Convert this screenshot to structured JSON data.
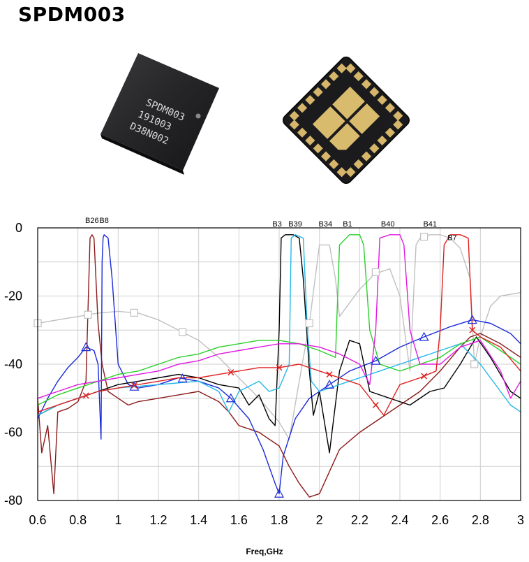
{
  "title": "SPDM003",
  "chip_marking": {
    "line1": "SPDM003",
    "line2": "191003",
    "line3": "D38N002"
  },
  "chart_data": {
    "type": "line",
    "title": "",
    "xlabel": "Freq,GHz",
    "ylabel": "",
    "xlim": [
      0.6,
      3.0
    ],
    "ylim": [
      -80,
      0
    ],
    "xticks": [
      "0.6",
      "0.8",
      "1",
      "1.2",
      "1.4",
      "1.6",
      "1.8",
      "2",
      "2.2",
      "2.4",
      "2.6",
      "2.8",
      "3"
    ],
    "yticks": [
      "0",
      "-20",
      "-40",
      "-60",
      "-80"
    ],
    "grid": true,
    "band_labels": [
      {
        "text": "B26",
        "x": 0.87,
        "y": 1
      },
      {
        "text": "B8",
        "x": 0.93,
        "y": 1
      },
      {
        "text": "B3",
        "x": 1.79,
        "y": 0
      },
      {
        "text": "B39",
        "x": 1.88,
        "y": 0
      },
      {
        "text": "B34",
        "x": 2.03,
        "y": 0
      },
      {
        "text": "B1",
        "x": 2.14,
        "y": 0
      },
      {
        "text": "B40",
        "x": 2.34,
        "y": 0
      },
      {
        "text": "B41",
        "x": 2.55,
        "y": 0
      },
      {
        "text": "B7",
        "x": 2.66,
        "y": -4
      }
    ],
    "series": [
      {
        "color": "#c0c0c0",
        "marker": "square",
        "marker_x": [
          0.6,
          0.85,
          1.08,
          1.32,
          1.95,
          2.28,
          2.52,
          2.77
        ],
        "x": [
          0.6,
          0.7,
          0.8,
          0.9,
          1.0,
          1.1,
          1.2,
          1.3,
          1.4,
          1.5,
          1.6,
          1.7,
          1.8,
          1.85,
          1.9,
          1.95,
          2.0,
          2.05,
          2.08,
          2.1,
          2.15,
          2.2,
          2.25,
          2.28,
          2.3,
          2.35,
          2.4,
          2.45,
          2.48,
          2.5,
          2.55,
          2.6,
          2.65,
          2.7,
          2.75,
          2.77,
          2.8,
          2.85,
          2.9,
          3.0
        ],
        "y": [
          -28,
          -27,
          -26,
          -25,
          -24.5,
          -25,
          -27,
          -30,
          -33,
          -38,
          -44,
          -50,
          -57,
          -62,
          -45,
          -28,
          -5,
          -5,
          -15,
          -26,
          -22,
          -18,
          -15,
          -13,
          -13,
          -12,
          -20,
          -42,
          -5,
          -3,
          -2,
          -2,
          -3,
          -6,
          -15,
          -40,
          -32,
          -23,
          -20,
          -19
        ]
      },
      {
        "color": "#8b1a1a",
        "x": [
          0.6,
          0.62,
          0.65,
          0.68,
          0.7,
          0.75,
          0.8,
          0.84,
          0.86,
          0.87,
          0.88,
          0.9,
          0.92,
          0.95,
          1.0,
          1.05,
          1.1,
          1.2,
          1.3,
          1.4,
          1.5,
          1.55,
          1.6,
          1.7,
          1.8,
          1.85,
          1.9,
          1.95,
          2.0,
          2.1,
          2.2,
          2.3,
          2.4,
          2.5,
          2.6,
          2.7,
          2.75,
          2.8,
          2.9,
          3.0
        ],
        "y": [
          -50,
          -66,
          -58,
          -78,
          -54,
          -53,
          -51,
          -45,
          -3,
          -2,
          -3,
          -28,
          -40,
          -48,
          -50,
          -52,
          -51,
          -50,
          -49,
          -48,
          -51,
          -54,
          -58,
          -60,
          -64,
          -70,
          -75,
          -79,
          -78,
          -65,
          -60,
          -56,
          -52,
          -48,
          -42,
          -35,
          -32,
          -31,
          -34,
          -38
        ]
      },
      {
        "color": "#1a2ad8",
        "marker": "triangle",
        "marker_x": [
          0.84,
          1.08,
          1.32,
          1.56,
          1.8,
          2.05,
          2.28,
          2.52,
          2.76
        ],
        "x": [
          0.6,
          0.65,
          0.7,
          0.75,
          0.8,
          0.84,
          0.88,
          0.9,
          0.915,
          0.92,
          0.925,
          0.93,
          0.95,
          0.97,
          1.0,
          1.05,
          1.1,
          1.2,
          1.3,
          1.4,
          1.5,
          1.56,
          1.65,
          1.72,
          1.78,
          1.8,
          1.82,
          1.88,
          1.95,
          2.05,
          2.15,
          2.28,
          2.4,
          2.52,
          2.65,
          2.76,
          2.85,
          2.95,
          3.0
        ],
        "y": [
          -56,
          -50,
          -45,
          -41,
          -38,
          -35,
          -36,
          -40,
          -62,
          -10,
          -3,
          -2,
          -3,
          -15,
          -40,
          -46,
          -47,
          -46,
          -44,
          -45,
          -47,
          -50,
          -56,
          -65,
          -75,
          -78,
          -67,
          -56,
          -50,
          -46,
          -42,
          -39,
          -35,
          -32,
          -29,
          -27,
          -28,
          -31,
          -34
        ]
      },
      {
        "color": "#000000",
        "x": [
          0.6,
          0.7,
          0.8,
          0.9,
          1.0,
          1.1,
          1.2,
          1.3,
          1.4,
          1.5,
          1.6,
          1.65,
          1.7,
          1.75,
          1.78,
          1.8,
          1.81,
          1.83,
          1.87,
          1.9,
          1.92,
          1.95,
          1.97,
          2.0,
          2.05,
          2.1,
          2.15,
          2.2,
          2.25,
          2.35,
          2.45,
          2.55,
          2.62,
          2.7,
          2.78,
          2.85,
          2.95,
          3.0
        ],
        "y": [
          -55,
          -52,
          -50,
          -48,
          -46,
          -45,
          -44,
          -43,
          -44,
          -46,
          -47,
          -52,
          -49,
          -56,
          -58,
          -30,
          -3,
          -2,
          -2,
          -3,
          -15,
          -42,
          -55,
          -48,
          -66,
          -42,
          -33,
          -34,
          -48,
          -50,
          -52,
          -48,
          -47,
          -40,
          -32,
          -38,
          -48,
          -50
        ]
      },
      {
        "color": "#22b8e8",
        "x": [
          0.6,
          0.7,
          0.8,
          0.9,
          1.0,
          1.2,
          1.4,
          1.5,
          1.55,
          1.6,
          1.7,
          1.75,
          1.8,
          1.85,
          1.86,
          1.88,
          1.92,
          1.94,
          1.96,
          2.0,
          2.1,
          2.2,
          2.3,
          2.4,
          2.5,
          2.6,
          2.7,
          2.8,
          2.9,
          2.95,
          3.0
        ],
        "y": [
          -55,
          -52,
          -50,
          -48,
          -47,
          -46,
          -45,
          -48,
          -54,
          -48,
          -45,
          -48,
          -47,
          -40,
          -3,
          -2,
          -3,
          -30,
          -45,
          -48,
          -46,
          -44,
          -42,
          -40,
          -38,
          -36,
          -34,
          -40,
          -48,
          -52,
          -54
        ]
      },
      {
        "color": "#2ad02a",
        "x": [
          0.6,
          0.7,
          0.8,
          0.9,
          1.0,
          1.1,
          1.2,
          1.3,
          1.4,
          1.5,
          1.6,
          1.7,
          1.8,
          1.9,
          2.0,
          2.08,
          2.1,
          2.15,
          2.2,
          2.22,
          2.25,
          2.3,
          2.4,
          2.5,
          2.6,
          2.7,
          2.8,
          2.9,
          3.0
        ],
        "y": [
          -52,
          -49,
          -47,
          -45,
          -43,
          -42,
          -40,
          -38,
          -37,
          -35,
          -34,
          -33,
          -33,
          -34,
          -36,
          -38,
          -5,
          -2,
          -2,
          -5,
          -30,
          -40,
          -42,
          -40,
          -38,
          -34,
          -32,
          -36,
          -40
        ]
      },
      {
        "color": "#e01ae0",
        "x": [
          0.6,
          0.7,
          0.8,
          0.9,
          1.0,
          1.1,
          1.2,
          1.3,
          1.4,
          1.5,
          1.6,
          1.7,
          1.8,
          1.9,
          2.0,
          2.1,
          2.2,
          2.25,
          2.28,
          2.3,
          2.35,
          2.4,
          2.42,
          2.45,
          2.5,
          2.6,
          2.7,
          2.8,
          2.9,
          2.95,
          3.0
        ],
        "y": [
          -50,
          -48,
          -46,
          -45,
          -44,
          -43,
          -42,
          -40,
          -39,
          -37,
          -36,
          -35,
          -34,
          -34,
          -35,
          -37,
          -40,
          -46,
          -30,
          -3,
          -2,
          -2,
          -5,
          -30,
          -40,
          -40,
          -35,
          -33,
          -42,
          -50,
          -45
        ]
      },
      {
        "color": "#e02020",
        "marker": "x",
        "marker_x": [
          0.84,
          1.08,
          1.56,
          1.8,
          2.05,
          2.28,
          2.52,
          2.76
        ],
        "x": [
          0.6,
          0.7,
          0.8,
          0.9,
          1.0,
          1.1,
          1.2,
          1.3,
          1.4,
          1.5,
          1.6,
          1.7,
          1.8,
          1.9,
          2.0,
          2.1,
          2.2,
          2.28,
          2.32,
          2.4,
          2.5,
          2.58,
          2.6,
          2.62,
          2.65,
          2.7,
          2.74,
          2.76,
          2.8,
          2.9,
          3.0
        ],
        "y": [
          -54,
          -52,
          -50,
          -48,
          -47,
          -46,
          -45,
          -44,
          -44,
          -43,
          -42,
          -41,
          -41,
          -40,
          -42,
          -44,
          -46,
          -52,
          -55,
          -46,
          -44,
          -42,
          -30,
          -5,
          -2,
          -2,
          -3,
          -30,
          -32,
          -35,
          -42
        ]
      }
    ]
  }
}
